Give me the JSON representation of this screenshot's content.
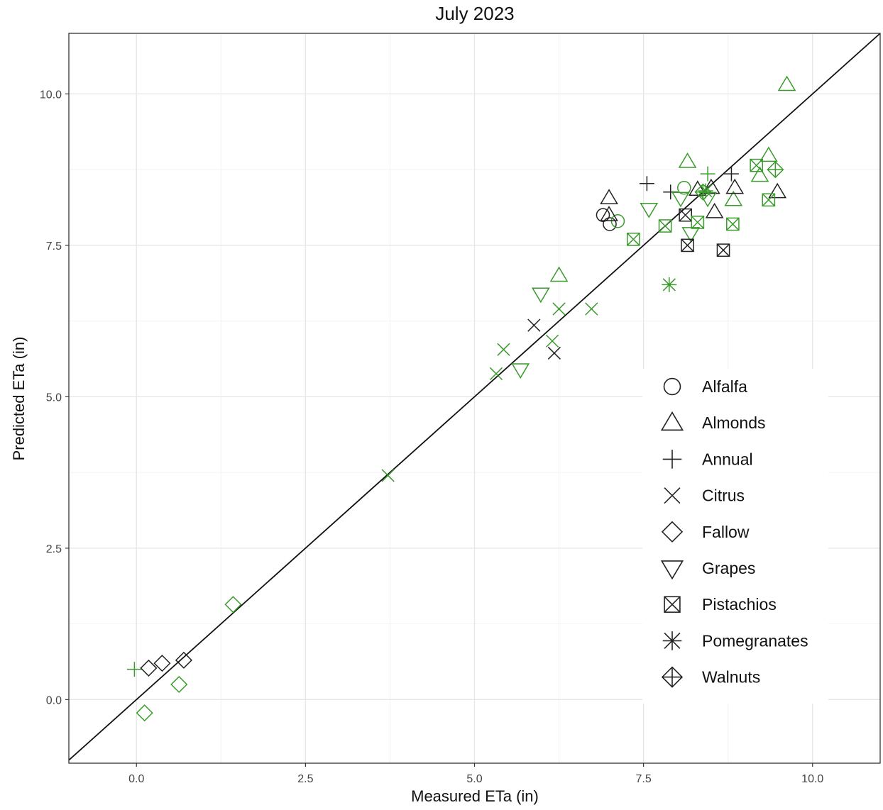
{
  "chart_data": {
    "type": "scatter",
    "title": "July 2023",
    "xlabel": "Measured ETa (in)",
    "ylabel": "Predicted ETa (in)",
    "xlim": [
      -1.0,
      11.0
    ],
    "ylim": [
      -1.05,
      11.0
    ],
    "x_ticks": [
      0.0,
      2.5,
      5.0,
      7.5,
      10.0
    ],
    "y_ticks": [
      0.0,
      2.5,
      5.0,
      7.5,
      10.0
    ],
    "x_tick_labels": [
      "0.0",
      "2.5",
      "5.0",
      "7.5",
      "10.0"
    ],
    "y_tick_labels": [
      "0.0",
      "2.5",
      "5.0",
      "7.5",
      "10.0"
    ],
    "grid": true,
    "reference_line": "1:1",
    "legend_position": "right",
    "colors": {
      "black": "#222222",
      "green": "#3a9a2c"
    },
    "legend": [
      "Alfalfa",
      "Almonds",
      "Annual",
      "Citrus",
      "Fallow",
      "Grapes",
      "Pistachios",
      "Pomegranates",
      "Walnuts"
    ],
    "series": [
      {
        "name": "Alfalfa",
        "points": [
          {
            "x": 6.9,
            "y": 8.0,
            "color": "black"
          },
          {
            "x": 7.0,
            "y": 7.85,
            "color": "black"
          },
          {
            "x": 7.12,
            "y": 7.9,
            "color": "green"
          },
          {
            "x": 8.1,
            "y": 8.45,
            "color": "green"
          }
        ]
      },
      {
        "name": "Almonds",
        "points": [
          {
            "x": 6.99,
            "y": 8.28,
            "color": "black"
          },
          {
            "x": 6.99,
            "y": 8.0,
            "color": "black"
          },
          {
            "x": 6.25,
            "y": 7.0,
            "color": "green"
          },
          {
            "x": 8.15,
            "y": 8.88,
            "color": "green"
          },
          {
            "x": 8.3,
            "y": 8.42,
            "color": "black"
          },
          {
            "x": 8.5,
            "y": 8.45,
            "color": "black"
          },
          {
            "x": 8.55,
            "y": 8.05,
            "color": "black"
          },
          {
            "x": 8.83,
            "y": 8.25,
            "color": "green"
          },
          {
            "x": 8.85,
            "y": 8.45,
            "color": "black"
          },
          {
            "x": 9.22,
            "y": 8.65,
            "color": "green"
          },
          {
            "x": 9.35,
            "y": 8.98,
            "color": "green"
          },
          {
            "x": 9.48,
            "y": 8.38,
            "color": "black"
          },
          {
            "x": 9.62,
            "y": 10.15,
            "color": "green"
          }
        ]
      },
      {
        "name": "Annual",
        "points": [
          {
            "x": -0.03,
            "y": 0.5,
            "color": "green"
          },
          {
            "x": 7.55,
            "y": 8.52,
            "color": "black"
          },
          {
            "x": 7.9,
            "y": 8.38,
            "color": "black"
          },
          {
            "x": 8.45,
            "y": 8.68,
            "color": "green"
          },
          {
            "x": 8.8,
            "y": 8.68,
            "color": "black"
          }
        ]
      },
      {
        "name": "Citrus",
        "points": [
          {
            "x": 3.72,
            "y": 3.7,
            "color": "green"
          },
          {
            "x": 5.32,
            "y": 5.38,
            "color": "green"
          },
          {
            "x": 5.43,
            "y": 5.78,
            "color": "green"
          },
          {
            "x": 5.88,
            "y": 6.18,
            "color": "black"
          },
          {
            "x": 6.18,
            "y": 5.72,
            "color": "black"
          },
          {
            "x": 6.15,
            "y": 5.92,
            "color": "green"
          },
          {
            "x": 6.25,
            "y": 6.45,
            "color": "green"
          },
          {
            "x": 6.73,
            "y": 6.45,
            "color": "green"
          }
        ]
      },
      {
        "name": "Fallow",
        "points": [
          {
            "x": 0.12,
            "y": -0.22,
            "color": "green"
          },
          {
            "x": 0.18,
            "y": 0.52,
            "color": "black"
          },
          {
            "x": 0.38,
            "y": 0.6,
            "color": "black"
          },
          {
            "x": 0.63,
            "y": 0.25,
            "color": "green"
          },
          {
            "x": 0.7,
            "y": 0.65,
            "color": "black"
          },
          {
            "x": 1.43,
            "y": 1.57,
            "color": "green"
          }
        ]
      },
      {
        "name": "Grapes",
        "points": [
          {
            "x": 5.68,
            "y": 5.45,
            "color": "green"
          },
          {
            "x": 5.98,
            "y": 6.7,
            "color": "green"
          },
          {
            "x": 7.58,
            "y": 8.1,
            "color": "green"
          },
          {
            "x": 8.05,
            "y": 8.28,
            "color": "green"
          },
          {
            "x": 8.2,
            "y": 7.7,
            "color": "green"
          },
          {
            "x": 8.45,
            "y": 8.28,
            "color": "green"
          }
        ]
      },
      {
        "name": "Pistachios",
        "points": [
          {
            "x": 7.35,
            "y": 7.6,
            "color": "green"
          },
          {
            "x": 7.82,
            "y": 7.82,
            "color": "green"
          },
          {
            "x": 8.12,
            "y": 8.0,
            "color": "black"
          },
          {
            "x": 8.15,
            "y": 7.5,
            "color": "black"
          },
          {
            "x": 8.3,
            "y": 7.88,
            "color": "green"
          },
          {
            "x": 8.68,
            "y": 7.42,
            "color": "black"
          },
          {
            "x": 8.82,
            "y": 7.85,
            "color": "green"
          },
          {
            "x": 9.17,
            "y": 8.82,
            "color": "green"
          },
          {
            "x": 9.35,
            "y": 8.25,
            "color": "green"
          }
        ]
      },
      {
        "name": "Pomegranates",
        "points": [
          {
            "x": 7.88,
            "y": 6.85,
            "color": "green"
          },
          {
            "x": 8.42,
            "y": 8.4,
            "color": "green"
          }
        ]
      },
      {
        "name": "Walnuts",
        "points": [
          {
            "x": 8.38,
            "y": 8.38,
            "color": "green"
          },
          {
            "x": 9.45,
            "y": 8.75,
            "color": "green"
          }
        ]
      }
    ]
  }
}
